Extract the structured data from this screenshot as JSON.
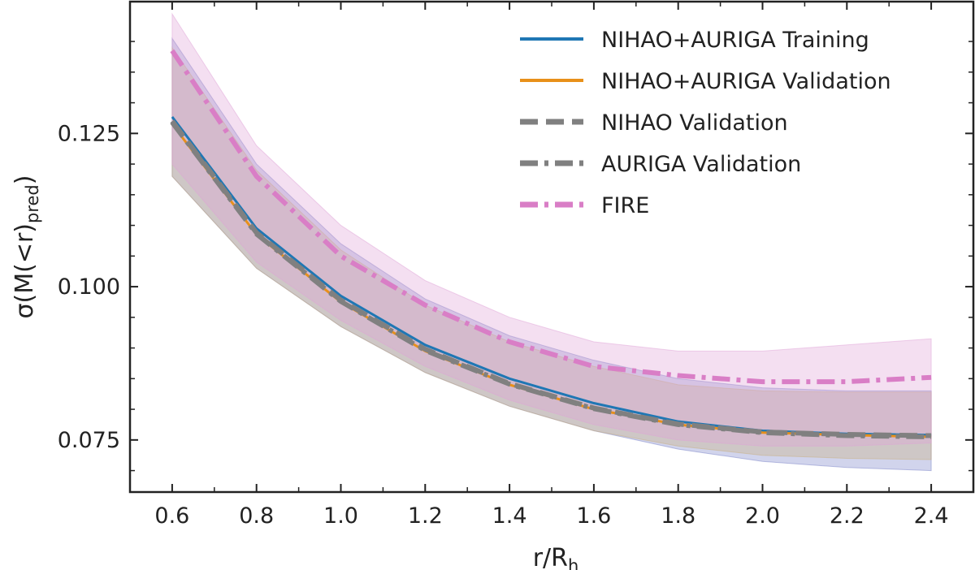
{
  "chart_data": {
    "type": "line",
    "title": "",
    "xlabel": "r/R",
    "xlabel_sub": "h",
    "ylabel": "σ(M(<r)",
    "ylabel_sub": "pred",
    "ylabel_close": ")",
    "xlim": [
      0.5,
      2.5
    ],
    "ylim": [
      0.0665,
      0.1465
    ],
    "xticks": [
      0.6,
      0.8,
      1.0,
      1.2,
      1.4,
      1.6,
      1.8,
      2.0,
      2.2,
      2.4
    ],
    "xtick_labels": [
      "0.6",
      "0.8",
      "1.0",
      "1.2",
      "1.4",
      "1.6",
      "1.8",
      "2.0",
      "2.2",
      "2.4"
    ],
    "yticks": [
      0.075,
      0.1,
      0.125
    ],
    "ytick_labels": [
      "0.075",
      "0.100",
      "0.125"
    ],
    "grid": false,
    "legend_position": "top-right",
    "x": [
      0.6,
      0.8,
      1.0,
      1.2,
      1.4,
      1.6,
      1.8,
      2.0,
      2.2,
      2.4
    ],
    "series": [
      {
        "name": "NIHAO+AURIGA Training",
        "style": "solid",
        "color": "#1f77b4",
        "values": [
          0.1277,
          0.1095,
          0.0985,
          0.0905,
          0.085,
          0.081,
          0.078,
          0.0765,
          0.076,
          0.0758
        ]
      },
      {
        "name": "NIHAO+AURIGA Validation",
        "style": "solid",
        "color": "#e8901a",
        "values": [
          0.1265,
          0.1085,
          0.0975,
          0.0895,
          0.084,
          0.08,
          0.0775,
          0.0762,
          0.0758,
          0.0755
        ]
      },
      {
        "name": "NIHAO Validation",
        "style": "dashed",
        "color": "#808080",
        "values": [
          0.127,
          0.1088,
          0.0978,
          0.0898,
          0.0842,
          0.0802,
          0.0776,
          0.0763,
          0.0759,
          0.0757
        ]
      },
      {
        "name": "AURIGA Validation",
        "style": "dashdot",
        "color": "#808080",
        "values": [
          0.1268,
          0.1086,
          0.0976,
          0.0896,
          0.0841,
          0.0801,
          0.0775,
          0.0762,
          0.0757,
          0.0755
        ]
      },
      {
        "name": "FIRE",
        "style": "dashdot",
        "color": "#d97ec6",
        "values": [
          0.1385,
          0.118,
          0.105,
          0.097,
          0.091,
          0.087,
          0.0855,
          0.0845,
          0.0845,
          0.0852
        ]
      }
    ],
    "bands": [
      {
        "name": "NIHAO+AURIGA Training band",
        "color": "#7b84c8",
        "opacity": 0.35,
        "lower": [
          0.118,
          0.103,
          0.0935,
          0.086,
          0.0805,
          0.0765,
          0.0735,
          0.0715,
          0.0705,
          0.07
        ],
        "upper": [
          0.1405,
          0.12,
          0.107,
          0.098,
          0.092,
          0.088,
          0.085,
          0.0835,
          0.083,
          0.083
        ]
      },
      {
        "name": "NIHAO+AURIGA Validation band",
        "color": "#c9b080",
        "opacity": 0.35,
        "lower": [
          0.118,
          0.103,
          0.0935,
          0.086,
          0.0805,
          0.0765,
          0.074,
          0.0725,
          0.072,
          0.0718
        ],
        "upper": [
          0.139,
          0.119,
          0.106,
          0.097,
          0.091,
          0.087,
          0.084,
          0.083,
          0.0828,
          0.0828
        ]
      },
      {
        "name": "FIRE band",
        "color": "#dfa3d8",
        "opacity": 0.35,
        "lower": [
          0.12,
          0.104,
          0.0945,
          0.087,
          0.0815,
          0.0775,
          0.075,
          0.074,
          0.074,
          0.0745
        ],
        "upper": [
          0.1445,
          0.123,
          0.11,
          0.101,
          0.095,
          0.091,
          0.0895,
          0.0895,
          0.0905,
          0.0915
        ]
      }
    ]
  }
}
